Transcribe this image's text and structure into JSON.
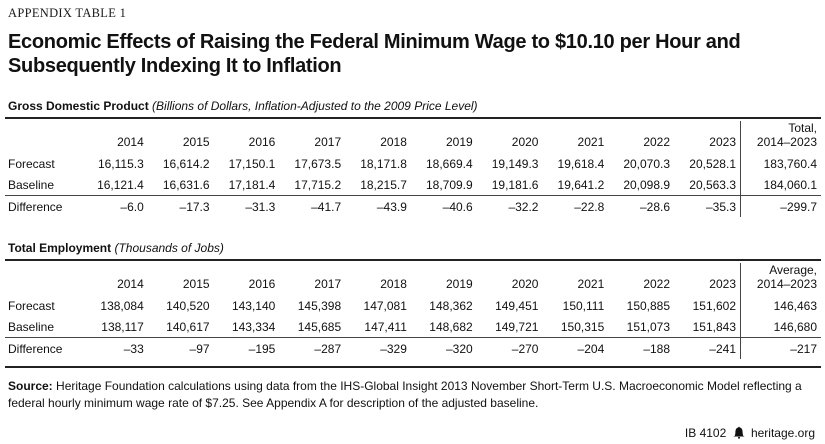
{
  "appendix_label": "APPENDIX TABLE 1",
  "title": "Economic Effects of Raising the Federal Minimum Wage to $10.10 per Hour and Subsequently Indexing It to Inflation",
  "gdp": {
    "heading": "Gross Domestic Product",
    "subheading": "(Billions of Dollars, Inflation-Adjusted to the 2009 Price Level)",
    "years": [
      "2014",
      "2015",
      "2016",
      "2017",
      "2018",
      "2019",
      "2020",
      "2021",
      "2022",
      "2023"
    ],
    "total_label_1": "Total,",
    "total_label_2": "2014–2023",
    "rows": [
      {
        "label": "Forecast",
        "values": [
          "16,115.3",
          "16,614.2",
          "17,150.1",
          "17,673.5",
          "18,171.8",
          "18,669.4",
          "19,149.3",
          "19,618.4",
          "20,070.3",
          "20,528.1"
        ],
        "total": "183,760.4"
      },
      {
        "label": "Baseline",
        "values": [
          "16,121.4",
          "16,631.6",
          "17,181.4",
          "17,715.2",
          "18,215.7",
          "18,709.9",
          "19,181.6",
          "19,641.2",
          "20,098.9",
          "20,563.3"
        ],
        "total": "184,060.1"
      },
      {
        "label": "Difference",
        "values": [
          "–6.0",
          "–17.3",
          "–31.3",
          "–41.7",
          "–43.9",
          "–40.6",
          "–32.2",
          "–22.8",
          "–28.6",
          "–35.3"
        ],
        "total": "–299.7"
      }
    ]
  },
  "employment": {
    "heading": "Total Employment",
    "subheading": "(Thousands of Jobs)",
    "years": [
      "2014",
      "2015",
      "2016",
      "2017",
      "2018",
      "2019",
      "2020",
      "2021",
      "2022",
      "2023"
    ],
    "total_label_1": "Average,",
    "total_label_2": "2014–2023",
    "rows": [
      {
        "label": "Forecast",
        "values": [
          "138,084",
          "140,520",
          "143,140",
          "145,398",
          "147,081",
          "148,362",
          "149,451",
          "150,111",
          "150,885",
          "151,602"
        ],
        "total": "146,463"
      },
      {
        "label": "Baseline",
        "values": [
          "138,117",
          "140,617",
          "143,334",
          "145,685",
          "147,411",
          "148,682",
          "149,721",
          "150,315",
          "151,073",
          "151,843"
        ],
        "total": "146,680"
      },
      {
        "label": "Difference",
        "values": [
          "–33",
          "–97",
          "–195",
          "–287",
          "–329",
          "–320",
          "–270",
          "–204",
          "–188",
          "–241"
        ],
        "total": "–217"
      }
    ]
  },
  "source": {
    "label": "Source:",
    "text": "Heritage Foundation calculations using data from the IHS-Global Insight 2013 November Short-Term U.S. Macroeconomic Model reflecting a federal hourly minimum wage rate of $7.25. See Appendix A for description of the adjusted baseline."
  },
  "footer": {
    "issue": "IB 4102",
    "icon": "liberty-bell-icon",
    "site": "heritage.org"
  }
}
